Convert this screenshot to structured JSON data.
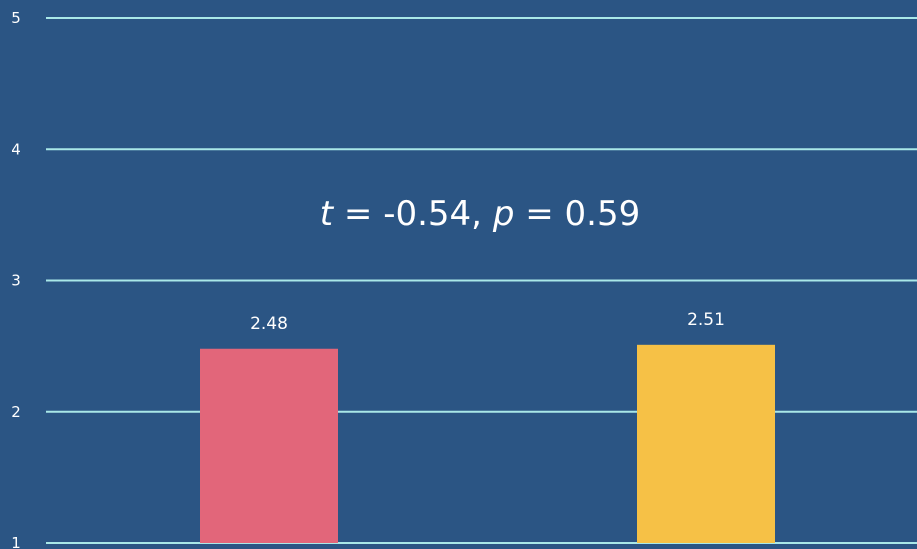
{
  "chart_data": {
    "type": "bar",
    "title": "",
    "xlabel": "",
    "ylabel": "",
    "categories": [
      "",
      ""
    ],
    "values": [
      2.48,
      2.51
    ],
    "data_labels": [
      "2.48",
      "2.51"
    ],
    "ylim": [
      1,
      5
    ],
    "yticks": [
      "1",
      "2",
      "3",
      "4",
      "5"
    ],
    "grid": true,
    "legend": "none",
    "annotation": {
      "t_symbol": "t",
      "t_value": " = -0.54, ",
      "p_symbol": "p",
      "p_value": " = 0.59"
    },
    "colors": {
      "background": "#2b5584",
      "gridline": "#a9e8e8",
      "bars": [
        "#e2667a",
        "#f6c146"
      ]
    }
  }
}
